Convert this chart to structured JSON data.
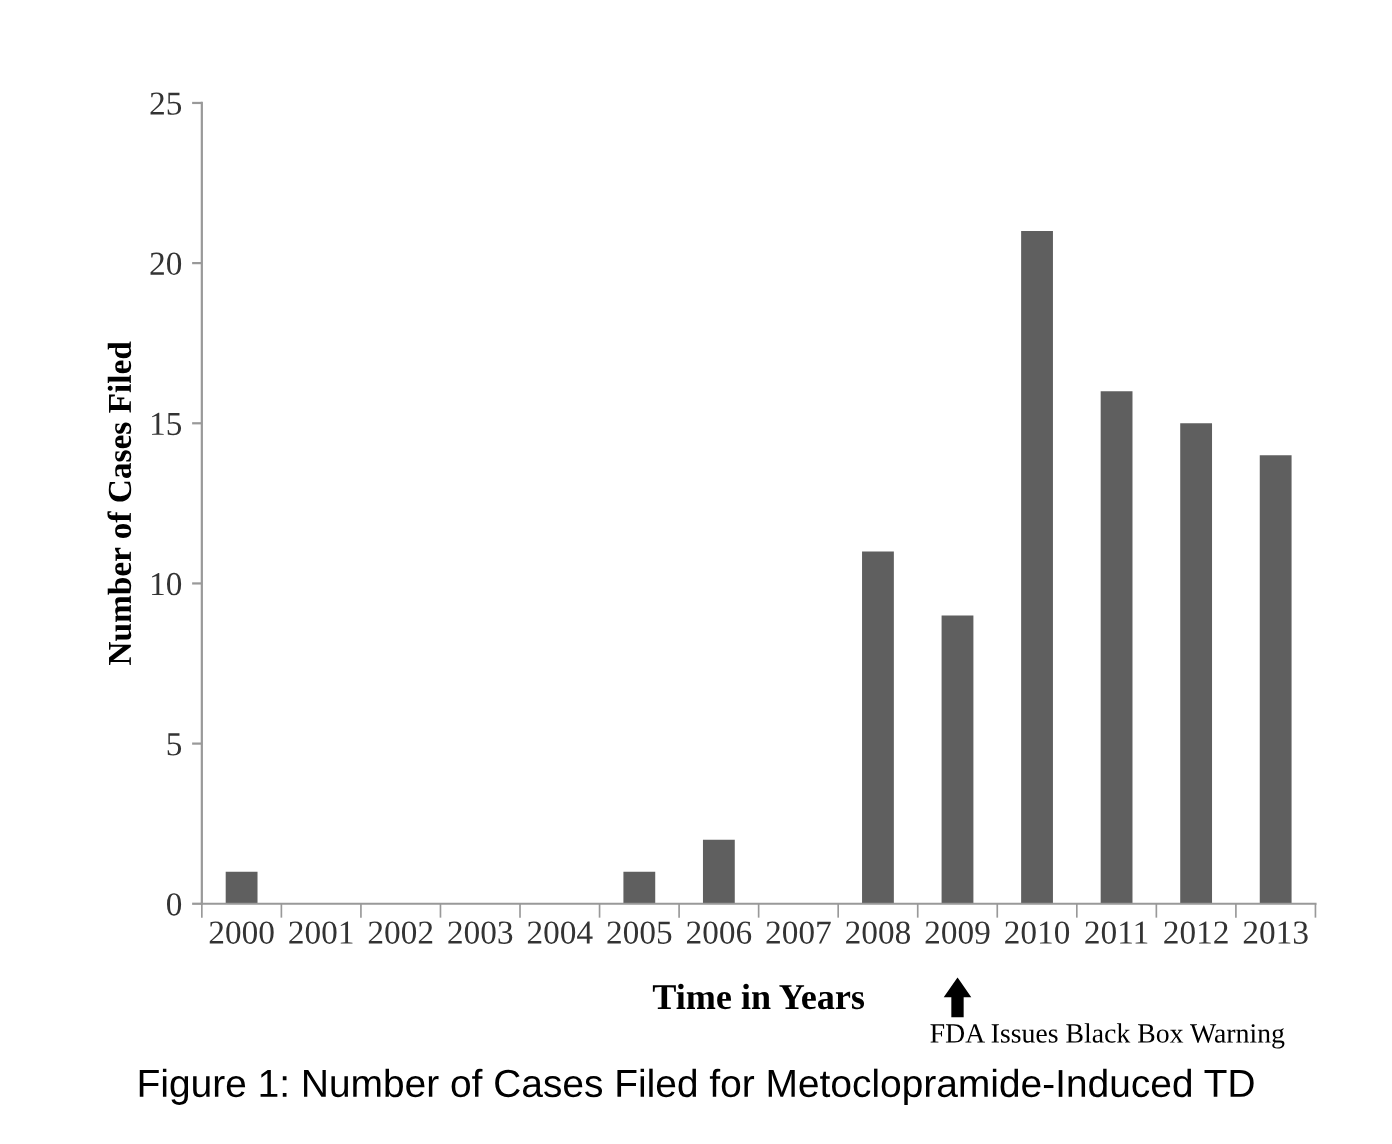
{
  "chart_data": {
    "type": "bar",
    "categories": [
      "2000",
      "2001",
      "2002",
      "2003",
      "2004",
      "2005",
      "2006",
      "2007",
      "2008",
      "2009",
      "2010",
      "2011",
      "2012",
      "2013"
    ],
    "values": [
      1,
      0,
      0,
      0,
      0,
      1,
      2,
      0,
      11,
      9,
      21,
      16,
      15,
      14
    ],
    "color": "#5f5f5f",
    "xlabel": "Time in Years",
    "ylabel": "Number of Cases Filed",
    "ylim": [
      0,
      25
    ],
    "yticks": [
      0,
      5,
      10,
      15,
      20,
      25
    ],
    "grid": false,
    "annotations": [
      "FDA Issues Black Box Warning",
      "Figure 1: Number of Cases Filed for Metoclopramide-Induced TD"
    ]
  }
}
